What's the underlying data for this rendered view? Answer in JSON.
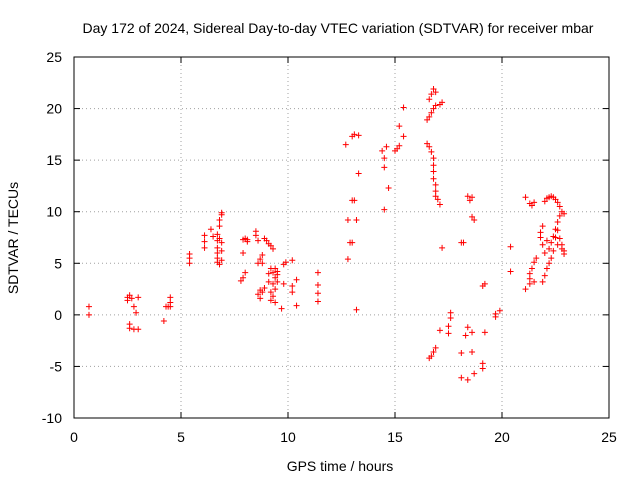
{
  "chart_data": {
    "type": "scatter",
    "title": "Day 172 of 2024, Sidereal Day-to-day VTEC variation (SDTVAR) for receiver mbar",
    "xlabel": "GPS time / hours",
    "ylabel": "SDTVAR / TECUs",
    "xlim": [
      0,
      25
    ],
    "ylim": [
      -10,
      25
    ],
    "xticks": [
      0,
      5,
      10,
      15,
      20,
      25
    ],
    "yticks": [
      -10,
      -5,
      0,
      5,
      10,
      15,
      20,
      25
    ],
    "grid": true,
    "marker": "+",
    "color": "#ff0000",
    "series": [
      {
        "name": "SDTVAR",
        "points": [
          [
            0.7,
            0.8
          ],
          [
            0.7,
            0.0
          ],
          [
            2.5,
            1.7
          ],
          [
            2.5,
            1.4
          ],
          [
            2.6,
            1.9
          ],
          [
            2.6,
            -0.9
          ],
          [
            2.6,
            -1.3
          ],
          [
            2.7,
            1.6
          ],
          [
            2.8,
            0.8
          ],
          [
            2.8,
            -1.4
          ],
          [
            2.9,
            0.2
          ],
          [
            3.0,
            1.7
          ],
          [
            3.0,
            -1.4
          ],
          [
            4.2,
            -0.6
          ],
          [
            4.3,
            0.8
          ],
          [
            4.4,
            0.8
          ],
          [
            4.5,
            1.2
          ],
          [
            4.5,
            1.7
          ],
          [
            4.5,
            0.8
          ],
          [
            5.4,
            5.9
          ],
          [
            5.4,
            5.5
          ],
          [
            5.4,
            5.0
          ],
          [
            6.1,
            7.7
          ],
          [
            6.1,
            7.1
          ],
          [
            6.1,
            6.5
          ],
          [
            6.4,
            8.3
          ],
          [
            6.5,
            7.6
          ],
          [
            6.7,
            5.1
          ],
          [
            6.7,
            5.5
          ],
          [
            6.7,
            6.0
          ],
          [
            6.7,
            6.5
          ],
          [
            6.7,
            7.2
          ],
          [
            6.7,
            7.8
          ],
          [
            6.8,
            8.6
          ],
          [
            6.8,
            9.2
          ],
          [
            6.8,
            4.9
          ],
          [
            6.8,
            7.4
          ],
          [
            6.9,
            9.7
          ],
          [
            6.9,
            9.9
          ],
          [
            6.9,
            5.3
          ],
          [
            6.9,
            6.2
          ],
          [
            6.9,
            7.0
          ],
          [
            7.8,
            3.3
          ],
          [
            7.9,
            3.6
          ],
          [
            7.9,
            7.3
          ],
          [
            7.9,
            6.0
          ],
          [
            8.0,
            4.1
          ],
          [
            8.0,
            7.4
          ],
          [
            8.1,
            7.3
          ],
          [
            8.1,
            7.1
          ],
          [
            8.5,
            8.1
          ],
          [
            8.5,
            7.7
          ],
          [
            8.6,
            7.2
          ],
          [
            8.6,
            5.0
          ],
          [
            8.6,
            2.0
          ],
          [
            8.7,
            5.4
          ],
          [
            8.7,
            2.4
          ],
          [
            8.7,
            1.6
          ],
          [
            8.8,
            5.8
          ],
          [
            8.8,
            2.2
          ],
          [
            8.8,
            5.0
          ],
          [
            8.9,
            2.6
          ],
          [
            8.9,
            7.4
          ],
          [
            9.0,
            7.2
          ],
          [
            9.1,
            6.9
          ],
          [
            9.1,
            4.0
          ],
          [
            9.1,
            3.2
          ],
          [
            9.2,
            6.7
          ],
          [
            9.2,
            4.5
          ],
          [
            9.2,
            2.2
          ],
          [
            9.2,
            1.4
          ],
          [
            9.3,
            6.4
          ],
          [
            9.3,
            4.1
          ],
          [
            9.3,
            3.0
          ],
          [
            9.3,
            1.8
          ],
          [
            9.4,
            4.5
          ],
          [
            9.4,
            3.6
          ],
          [
            9.4,
            2.5
          ],
          [
            9.4,
            1.2
          ],
          [
            9.5,
            4.2
          ],
          [
            9.5,
            3.9
          ],
          [
            9.5,
            3.2
          ],
          [
            9.7,
            0.6
          ],
          [
            9.8,
            4.9
          ],
          [
            9.8,
            3.0
          ],
          [
            9.9,
            5.1
          ],
          [
            10.2,
            5.3
          ],
          [
            10.2,
            2.8
          ],
          [
            10.2,
            2.2
          ],
          [
            10.4,
            3.4
          ],
          [
            10.4,
            0.9
          ],
          [
            11.4,
            4.1
          ],
          [
            11.4,
            2.9
          ],
          [
            11.4,
            2.1
          ],
          [
            11.4,
            1.3
          ],
          [
            12.7,
            16.5
          ],
          [
            12.8,
            9.2
          ],
          [
            12.8,
            5.4
          ],
          [
            12.9,
            7.0
          ],
          [
            13.0,
            17.3
          ],
          [
            13.0,
            11.1
          ],
          [
            13.0,
            7.0
          ],
          [
            13.1,
            17.5
          ],
          [
            13.1,
            11.1
          ],
          [
            13.2,
            9.2
          ],
          [
            13.2,
            0.5
          ],
          [
            13.3,
            17.4
          ],
          [
            13.3,
            13.7
          ],
          [
            14.4,
            15.9
          ],
          [
            14.5,
            10.2
          ],
          [
            14.5,
            15.2
          ],
          [
            14.5,
            14.3
          ],
          [
            14.6,
            16.3
          ],
          [
            14.7,
            12.3
          ],
          [
            15.0,
            15.9
          ],
          [
            15.1,
            16.1
          ],
          [
            15.2,
            16.4
          ],
          [
            15.2,
            18.3
          ],
          [
            15.4,
            20.1
          ],
          [
            15.4,
            17.3
          ],
          [
            16.5,
            16.6
          ],
          [
            16.5,
            18.9
          ],
          [
            16.6,
            19.2
          ],
          [
            16.6,
            16.3
          ],
          [
            16.6,
            20.9
          ],
          [
            16.6,
            -4.2
          ],
          [
            16.7,
            19.6
          ],
          [
            16.7,
            21.4
          ],
          [
            16.7,
            15.8
          ],
          [
            16.7,
            -4.0
          ],
          [
            16.8,
            15.2
          ],
          [
            16.8,
            14.5
          ],
          [
            16.8,
            13.9
          ],
          [
            16.8,
            13.2
          ],
          [
            16.8,
            21.9
          ],
          [
            16.8,
            -3.6
          ],
          [
            16.8,
            20.0
          ],
          [
            16.9,
            12.6
          ],
          [
            16.9,
            12.0
          ],
          [
            16.9,
            11.5
          ],
          [
            16.9,
            21.6
          ],
          [
            16.9,
            20.3
          ],
          [
            16.9,
            -3.2
          ],
          [
            17.0,
            11.2
          ],
          [
            17.1,
            10.7
          ],
          [
            17.1,
            20.4
          ],
          [
            17.1,
            -1.5
          ],
          [
            17.2,
            6.5
          ],
          [
            17.2,
            20.6
          ],
          [
            17.5,
            -1.1
          ],
          [
            17.5,
            -1.8
          ],
          [
            17.6,
            -0.3
          ],
          [
            17.6,
            0.2
          ],
          [
            18.1,
            -6.1
          ],
          [
            18.1,
            -3.7
          ],
          [
            18.1,
            7.0
          ],
          [
            18.2,
            7.0
          ],
          [
            18.3,
            -2.0
          ],
          [
            18.4,
            -6.3
          ],
          [
            18.4,
            -1.2
          ],
          [
            18.4,
            11.5
          ],
          [
            18.5,
            11.1
          ],
          [
            18.6,
            11.4
          ],
          [
            18.6,
            9.5
          ],
          [
            18.6,
            -3.6
          ],
          [
            18.6,
            -1.7
          ],
          [
            18.7,
            9.2
          ],
          [
            18.7,
            -5.7
          ],
          [
            19.1,
            -5.2
          ],
          [
            19.1,
            -4.7
          ],
          [
            19.1,
            2.8
          ],
          [
            19.2,
            3.0
          ],
          [
            19.2,
            -1.7
          ],
          [
            19.7,
            -0.2
          ],
          [
            19.7,
            0.1
          ],
          [
            19.9,
            0.4
          ],
          [
            20.4,
            6.6
          ],
          [
            20.4,
            4.2
          ],
          [
            21.1,
            11.4
          ],
          [
            21.1,
            2.5
          ],
          [
            21.3,
            10.8
          ],
          [
            21.3,
            3.0
          ],
          [
            21.3,
            3.5
          ],
          [
            21.3,
            4.0
          ],
          [
            21.4,
            10.6
          ],
          [
            21.4,
            4.5
          ],
          [
            21.5,
            10.9
          ],
          [
            21.5,
            5.1
          ],
          [
            21.5,
            3.2
          ],
          [
            21.6,
            5.5
          ],
          [
            21.8,
            8.0
          ],
          [
            21.8,
            7.5
          ],
          [
            21.9,
            8.6
          ],
          [
            21.9,
            6.8
          ],
          [
            21.9,
            3.2
          ],
          [
            22.0,
            11.0
          ],
          [
            22.0,
            6.0
          ],
          [
            22.0,
            3.8
          ],
          [
            22.1,
            11.3
          ],
          [
            22.1,
            7.2
          ],
          [
            22.1,
            4.5
          ],
          [
            22.2,
            11.4
          ],
          [
            22.2,
            6.4
          ],
          [
            22.2,
            5.0
          ],
          [
            22.3,
            11.5
          ],
          [
            22.3,
            7.0
          ],
          [
            22.3,
            5.5
          ],
          [
            22.4,
            11.4
          ],
          [
            22.4,
            7.6
          ],
          [
            22.4,
            6.2
          ],
          [
            22.5,
            11.2
          ],
          [
            22.5,
            8.3
          ],
          [
            22.5,
            7.5
          ],
          [
            22.6,
            10.9
          ],
          [
            22.6,
            9.0
          ],
          [
            22.6,
            8.2
          ],
          [
            22.6,
            6.8
          ],
          [
            22.7,
            10.5
          ],
          [
            22.7,
            9.6
          ],
          [
            22.7,
            7.4
          ],
          [
            22.8,
            10.0
          ],
          [
            22.8,
            6.8
          ],
          [
            22.8,
            6.4
          ],
          [
            22.9,
            9.8
          ],
          [
            22.9,
            6.2
          ],
          [
            22.9,
            5.9
          ]
        ]
      }
    ]
  }
}
